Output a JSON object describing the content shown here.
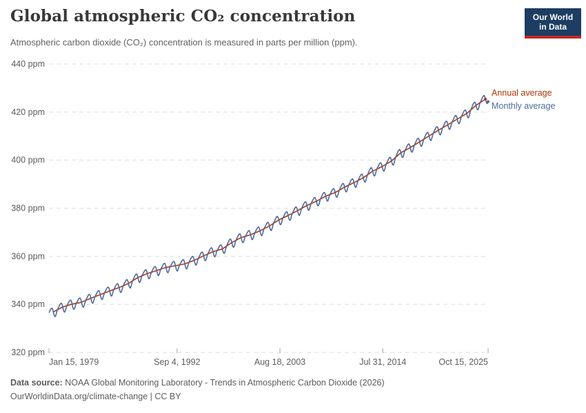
{
  "header": {
    "title": "Global atmospheric CO₂ concentration",
    "subtitle": "Atmospheric carbon dioxide (CO₂) concentration is measured in parts per million (ppm)."
  },
  "logo": {
    "line1": "Our World",
    "line2": "in Data",
    "background_color": "#1d3d63",
    "accent_color": "#c52828"
  },
  "footer": {
    "source_label": "Data source:",
    "source_text": " NOAA Global Monitoring Laboratory - Trends in Atmospheric Carbon Dioxide (2026)",
    "license": "OurWorldinData.org/climate-change | CC BY"
  },
  "chart_data": {
    "type": "line",
    "title": "Global atmospheric CO₂ concentration",
    "xlabel": "",
    "ylabel": "ppm",
    "ylim": [
      320,
      440
    ],
    "yticks": [
      320,
      340,
      360,
      380,
      400,
      420,
      440
    ],
    "ytick_suffix": " ppm",
    "grid": "dashed horizontal gridlines",
    "grid_color": "#dedede",
    "axis_text_color": "#5b5b5b",
    "x_range_years": [
      1979.04,
      2025.79
    ],
    "xticks": [
      {
        "pos": 1979.04,
        "label": "Jan 15, 1979",
        "align": "start"
      },
      {
        "pos": 1992.68,
        "label": "Sep 4, 1992",
        "align": "middle"
      },
      {
        "pos": 2003.63,
        "label": "Aug 18, 2003",
        "align": "middle"
      },
      {
        "pos": 2014.58,
        "label": "Jul 31, 2014",
        "align": "middle"
      },
      {
        "pos": 2025.79,
        "label": "Oct 15, 2025",
        "align": "end"
      }
    ],
    "legend_position": "right of line ends",
    "series": [
      {
        "name": "Annual average",
        "color": "#B13507",
        "years": [
          1979,
          1980,
          1981,
          1982,
          1983,
          1984,
          1985,
          1986,
          1987,
          1988,
          1989,
          1990,
          1991,
          1992,
          1993,
          1994,
          1995,
          1996,
          1997,
          1998,
          1999,
          2000,
          2001,
          2002,
          2003,
          2004,
          2005,
          2006,
          2007,
          2008,
          2009,
          2010,
          2011,
          2012,
          2013,
          2014,
          2015,
          2016,
          2017,
          2018,
          2019,
          2020,
          2021,
          2022,
          2023,
          2024,
          2025
        ],
        "values": [
          336.85,
          338.91,
          340.11,
          340.86,
          342.53,
          344.07,
          345.54,
          346.97,
          348.68,
          351.16,
          352.79,
          354.06,
          355.39,
          356.09,
          356.83,
          358.33,
          360.18,
          361.93,
          363.05,
          365.7,
          367.8,
          368.97,
          370.57,
          372.59,
          375.14,
          376.95,
          378.98,
          381.15,
          382.9,
          385.02,
          386.5,
          388.76,
          390.63,
          392.65,
          395.4,
          397.34,
          399.65,
          403.07,
          405.22,
          407.61,
          410.07,
          412.44,
          414.7,
          417.08,
          419.35,
          422.79,
          425.4
        ]
      },
      {
        "name": "Monthly average",
        "color": "#4C6A9C",
        "start_month": "1979-01",
        "end_month": "2025-10",
        "derivation": "annual trend interpolated per month plus seasonal offset",
        "seasonal_offsets_by_month": [
          0.6,
          1.1,
          1.6,
          1.9,
          1.8,
          0.9,
          -0.7,
          -2.0,
          -2.4,
          -1.8,
          -0.7,
          0.1
        ]
      }
    ]
  }
}
